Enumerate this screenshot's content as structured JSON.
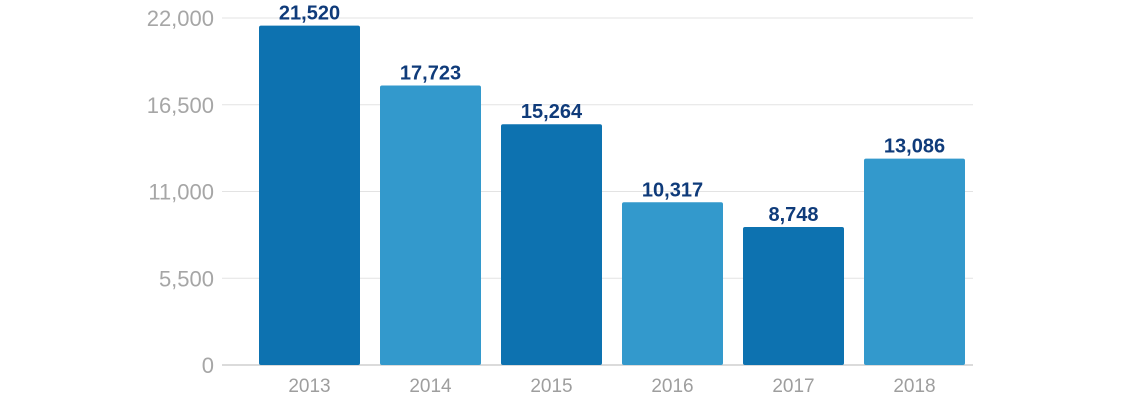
{
  "chart_data": {
    "type": "bar",
    "categories": [
      "2013",
      "2014",
      "2015",
      "2016",
      "2017",
      "2018"
    ],
    "values": [
      21520,
      17723,
      15264,
      10317,
      8748,
      13086
    ],
    "data_labels": [
      "21,520",
      "17,723",
      "15,264",
      "10,317",
      "8,748",
      "13,086"
    ],
    "ylim": [
      0,
      22000
    ],
    "yticks": [
      0,
      5500,
      11000,
      16500,
      22000
    ],
    "ytick_labels": [
      "0",
      "5,500",
      "11,000",
      "16,500",
      "22,000"
    ],
    "grid": true,
    "legend": "none",
    "colors": {
      "bar_dark": "#0d72b0",
      "bar_light": "#3399cc",
      "data_label": "#0f3b7a"
    },
    "bar_colors": [
      "#0d72b0",
      "#3399cc",
      "#0d72b0",
      "#3399cc",
      "#0d72b0",
      "#3399cc"
    ]
  }
}
